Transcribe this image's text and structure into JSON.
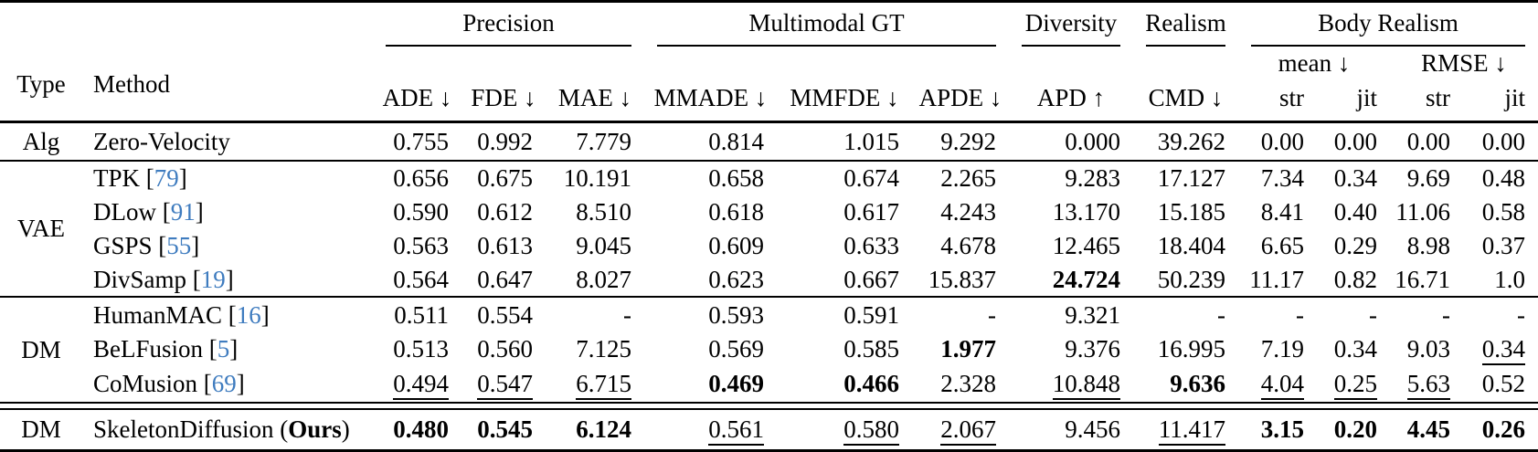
{
  "colors": {
    "background": "#ffffff",
    "text": "#000000",
    "citation": "#3f7cbf"
  },
  "header": {
    "type_label": "Type",
    "method_label": "Method",
    "groups": [
      {
        "label": "Precision",
        "span": 3
      },
      {
        "label": "Multimodal GT",
        "span": 3
      },
      {
        "label": "Diversity",
        "span": 1
      },
      {
        "label": "Realism",
        "span": 1
      },
      {
        "label": "Body Realism",
        "span": 4
      }
    ],
    "body_realism_sub": [
      {
        "label": "mean ↓",
        "span": 2
      },
      {
        "label": "RMSE ↓",
        "span": 2
      }
    ],
    "metric_columns": [
      "ADE ↓",
      "FDE ↓",
      "MAE ↓",
      "MMADE ↓",
      "MMFDE ↓",
      "APDE ↓",
      "APD ↑",
      "CMD ↓",
      "str",
      "jit",
      "str",
      "jit"
    ]
  },
  "body": {
    "groups": [
      {
        "type": "Alg",
        "rule_above": false,
        "double_rule_before": false,
        "rows": [
          {
            "method": "Zero-Velocity",
            "cite": null,
            "ours_suffix": null,
            "cells": [
              [
                "0.755",
                ""
              ],
              [
                "0.992",
                ""
              ],
              [
                "7.779",
                ""
              ],
              [
                "0.814",
                ""
              ],
              [
                "1.015",
                ""
              ],
              [
                "9.292",
                ""
              ],
              [
                "0.000",
                ""
              ],
              [
                "39.262",
                ""
              ],
              [
                "0.00",
                ""
              ],
              [
                "0.00",
                ""
              ],
              [
                "0.00",
                ""
              ],
              [
                "0.00",
                ""
              ]
            ]
          }
        ]
      },
      {
        "type": "VAE",
        "rule_above": true,
        "double_rule_before": false,
        "rows": [
          {
            "method": "TPK",
            "cite": "79",
            "ours_suffix": null,
            "cells": [
              [
                "0.656",
                ""
              ],
              [
                "0.675",
                ""
              ],
              [
                "10.191",
                ""
              ],
              [
                "0.658",
                ""
              ],
              [
                "0.674",
                ""
              ],
              [
                "2.265",
                ""
              ],
              [
                "9.283",
                ""
              ],
              [
                "17.127",
                ""
              ],
              [
                "7.34",
                ""
              ],
              [
                "0.34",
                ""
              ],
              [
                "9.69",
                ""
              ],
              [
                "0.48",
                ""
              ]
            ]
          },
          {
            "method": "DLow",
            "cite": "91",
            "ours_suffix": null,
            "cells": [
              [
                "0.590",
                ""
              ],
              [
                "0.612",
                ""
              ],
              [
                "8.510",
                ""
              ],
              [
                "0.618",
                ""
              ],
              [
                "0.617",
                ""
              ],
              [
                "4.243",
                ""
              ],
              [
                "13.170",
                ""
              ],
              [
                "15.185",
                ""
              ],
              [
                "8.41",
                ""
              ],
              [
                "0.40",
                ""
              ],
              [
                "11.06",
                ""
              ],
              [
                "0.58",
                ""
              ]
            ]
          },
          {
            "method": "GSPS",
            "cite": "55",
            "ours_suffix": null,
            "cells": [
              [
                "0.563",
                ""
              ],
              [
                "0.613",
                ""
              ],
              [
                "9.045",
                ""
              ],
              [
                "0.609",
                ""
              ],
              [
                "0.633",
                ""
              ],
              [
                "4.678",
                ""
              ],
              [
                "12.465",
                ""
              ],
              [
                "18.404",
                ""
              ],
              [
                "6.65",
                ""
              ],
              [
                "0.29",
                ""
              ],
              [
                "8.98",
                ""
              ],
              [
                "0.37",
                ""
              ]
            ]
          },
          {
            "method": "DivSamp",
            "cite": "19",
            "ours_suffix": null,
            "cells": [
              [
                "0.564",
                ""
              ],
              [
                "0.647",
                ""
              ],
              [
                "8.027",
                ""
              ],
              [
                "0.623",
                ""
              ],
              [
                "0.667",
                ""
              ],
              [
                "15.837",
                ""
              ],
              [
                "24.724",
                "b"
              ],
              [
                "50.239",
                ""
              ],
              [
                "11.17",
                ""
              ],
              [
                "0.82",
                ""
              ],
              [
                "16.71",
                ""
              ],
              [
                "1.0",
                ""
              ]
            ]
          }
        ]
      },
      {
        "type": "DM",
        "rule_above": true,
        "double_rule_before": false,
        "rows": [
          {
            "method": "HumanMAC",
            "cite": "16",
            "ours_suffix": null,
            "cells": [
              [
                "0.511",
                ""
              ],
              [
                "0.554",
                ""
              ],
              [
                "-",
                ""
              ],
              [
                "0.593",
                ""
              ],
              [
                "0.591",
                ""
              ],
              [
                "-",
                ""
              ],
              [
                "9.321",
                ""
              ],
              [
                "-",
                ""
              ],
              [
                "-",
                ""
              ],
              [
                "-",
                ""
              ],
              [
                "-",
                ""
              ],
              [
                "-",
                ""
              ]
            ]
          },
          {
            "method": "BeLFusion",
            "cite": "5",
            "ours_suffix": null,
            "cells": [
              [
                "0.513",
                ""
              ],
              [
                "0.560",
                ""
              ],
              [
                "7.125",
                ""
              ],
              [
                "0.569",
                ""
              ],
              [
                "0.585",
                ""
              ],
              [
                "1.977",
                "b"
              ],
              [
                "9.376",
                ""
              ],
              [
                "16.995",
                ""
              ],
              [
                "7.19",
                ""
              ],
              [
                "0.34",
                ""
              ],
              [
                "9.03",
                ""
              ],
              [
                "0.34",
                "u"
              ]
            ]
          },
          {
            "method": "CoMusion",
            "cite": "69",
            "ours_suffix": null,
            "cells": [
              [
                "0.494",
                "u"
              ],
              [
                "0.547",
                "u"
              ],
              [
                "6.715",
                "u"
              ],
              [
                "0.469",
                "b"
              ],
              [
                "0.466",
                "b"
              ],
              [
                "2.328",
                ""
              ],
              [
                "10.848",
                "u"
              ],
              [
                "9.636",
                "b"
              ],
              [
                "4.04",
                "u"
              ],
              [
                "0.25",
                "u"
              ],
              [
                "5.63",
                "u"
              ],
              [
                "0.52",
                ""
              ]
            ]
          }
        ]
      },
      {
        "type": "DM",
        "rule_above": false,
        "double_rule_before": true,
        "rows": [
          {
            "method": "SkeletonDiffusion",
            "cite": null,
            "ours_suffix": "Ours",
            "cells": [
              [
                "0.480",
                "b"
              ],
              [
                "0.545",
                "b"
              ],
              [
                "6.124",
                "b"
              ],
              [
                "0.561",
                "u"
              ],
              [
                "0.580",
                "u"
              ],
              [
                "2.067",
                "u"
              ],
              [
                "9.456",
                ""
              ],
              [
                "11.417",
                "u"
              ],
              [
                "3.15",
                "b"
              ],
              [
                "0.20",
                "b"
              ],
              [
                "4.45",
                "b"
              ],
              [
                "0.26",
                "b"
              ]
            ]
          }
        ]
      }
    ]
  }
}
